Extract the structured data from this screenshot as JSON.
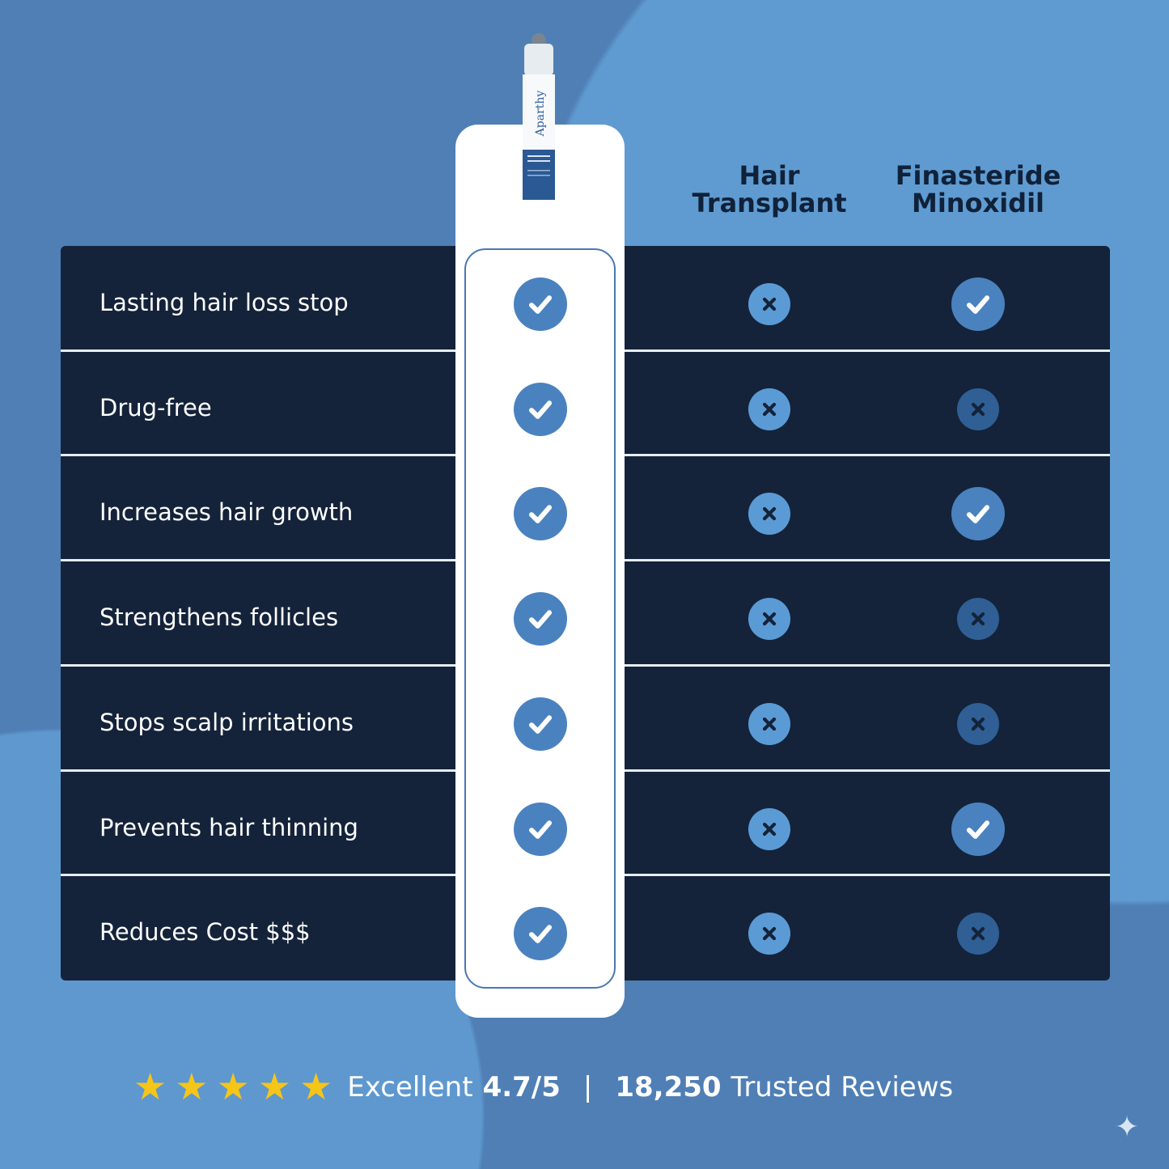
{
  "product": {
    "brand": "Aparthy"
  },
  "headers": [
    "Hair Transplant",
    "Finasteride Minoxidil"
  ],
  "header_lines": [
    [
      "Hair",
      "Transplant"
    ],
    [
      "Finasteride",
      "Minoxidil"
    ]
  ],
  "rows": [
    {
      "label": "Lasting hair loss stop",
      "product": true,
      "transplant": false,
      "finasteride": true
    },
    {
      "label": "Drug-free",
      "product": true,
      "transplant": false,
      "finasteride": false
    },
    {
      "label": "Increases hair growth",
      "product": true,
      "transplant": false,
      "finasteride": true
    },
    {
      "label": "Strengthens follicles",
      "product": true,
      "transplant": false,
      "finasteride": false
    },
    {
      "label": "Stops scalp irritations",
      "product": true,
      "transplant": false,
      "finasteride": false
    },
    {
      "label": "Prevents hair thinning",
      "product": true,
      "transplant": false,
      "finasteride": true
    },
    {
      "label": "Reduces Cost $$$",
      "product": true,
      "transplant": false,
      "finasteride": false
    }
  ],
  "rating": {
    "stars": 5,
    "label": "Excellent",
    "score": "4.7/5",
    "separator": "|",
    "count": "18,250",
    "count_label": "Trusted Reviews"
  },
  "colors": {
    "table_bg": "#14233a",
    "check": "#4a82bf",
    "cross_light": "#5b9bd5",
    "cross_dark": "#2f5f94",
    "star": "#f5c518"
  }
}
